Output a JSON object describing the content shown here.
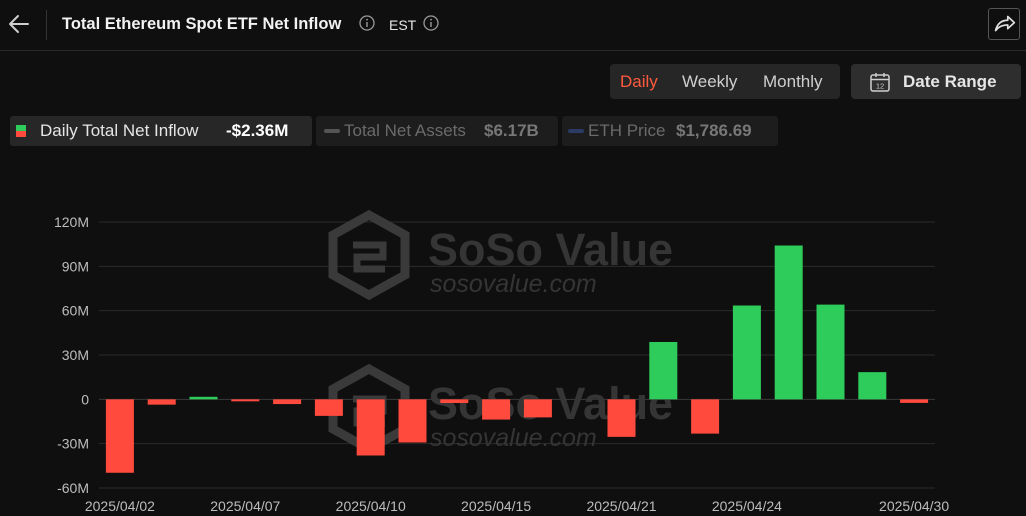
{
  "header": {
    "title": "Total Ethereum Spot ETF Net Inflow",
    "timezone": "EST"
  },
  "controls": {
    "periods": [
      "Daily",
      "Weekly",
      "Monthly"
    ],
    "active_period": "Daily",
    "date_range_label": "Date Range"
  },
  "legend": {
    "net_inflow_label": "Daily Total Net Inflow",
    "net_inflow_value": "-$2.36M",
    "assets_label": "Total Net Assets",
    "assets_value": "$6.17B",
    "price_label": "ETH Price",
    "price_value": "$1,786.69"
  },
  "watermark": {
    "brand": "SoSo Value",
    "url": "sosovalue.com"
  },
  "colors": {
    "positive": "#2ecc5a",
    "negative": "#ff4a3d",
    "accent": "#ff5a3c"
  },
  "chart_data": {
    "type": "bar",
    "ylim": [
      -60,
      120
    ],
    "yticks": [
      120,
      90,
      60,
      30,
      0,
      -30,
      -60
    ],
    "ytick_labels": [
      "120M",
      "90M",
      "60M",
      "30M",
      "0",
      "-30M",
      "-60M"
    ],
    "x_tick_labels": [
      "2025/04/02",
      "2025/04/07",
      "2025/04/10",
      "2025/04/15",
      "2025/04/21",
      "2025/04/24",
      "2025/04/30"
    ],
    "dates": [
      "2025/04/02",
      "2025/04/03",
      "2025/04/04",
      "2025/04/07",
      "2025/04/08",
      "2025/04/09",
      "2025/04/10",
      "2025/04/11",
      "2025/04/14",
      "2025/04/15",
      "2025/04/16",
      "2025/04/17",
      "2025/04/21",
      "2025/04/22",
      "2025/04/23",
      "2025/04/24",
      "2025/04/25",
      "2025/04/28",
      "2025/04/29",
      "2025/04/30"
    ],
    "values": [
      -49.7,
      -3.6,
      1.7,
      -0.3,
      -3.2,
      -11.2,
      -38.0,
      -29.2,
      -2.5,
      -13.7,
      -12.2,
      0,
      -25.4,
      38.8,
      -23.2,
      63.5,
      104.1,
      64.1,
      18.4,
      -2.4
    ],
    "units": "M"
  }
}
